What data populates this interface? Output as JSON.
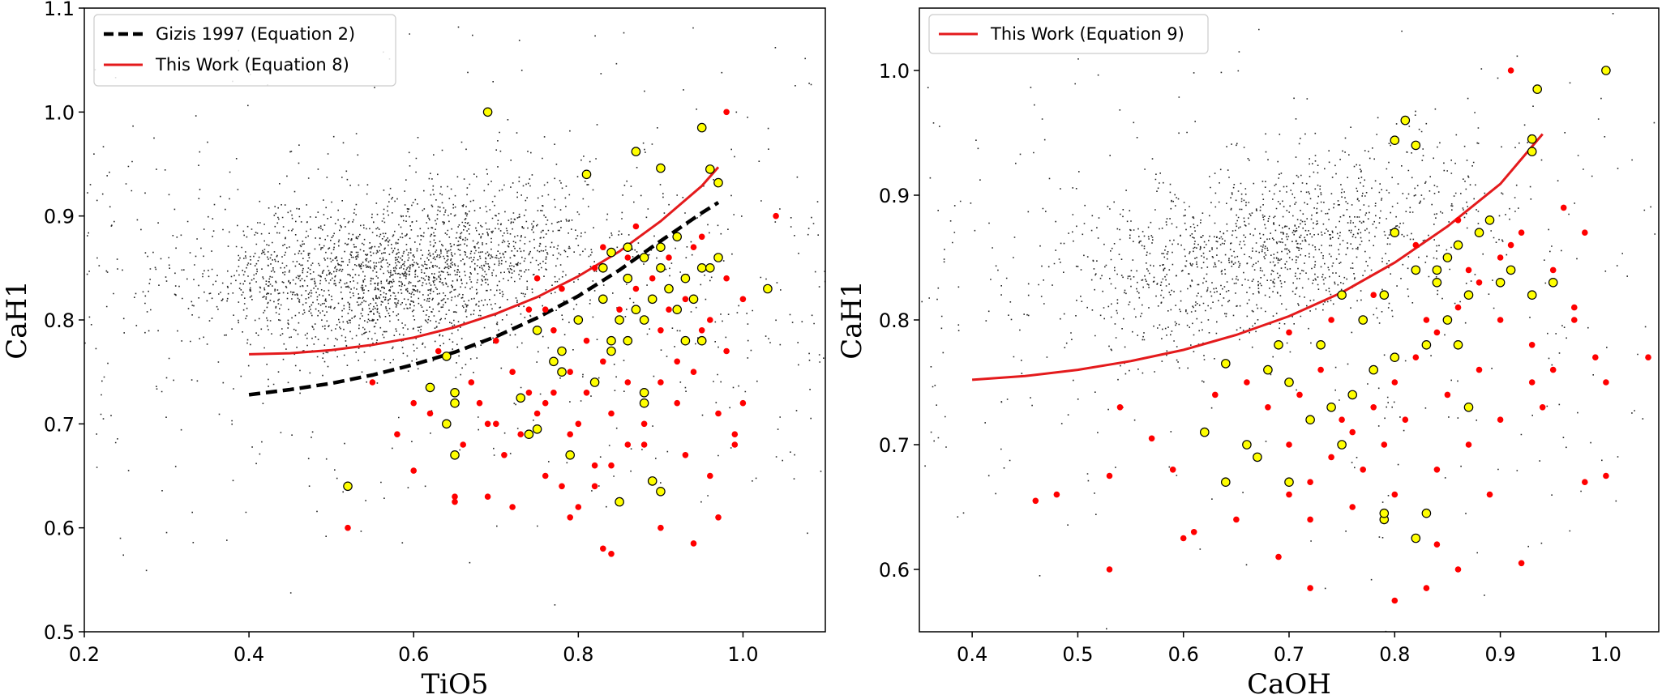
{
  "chart_data": [
    {
      "type": "scatter",
      "xlabel": "TiO5",
      "ylabel": "CaH1",
      "xlim": [
        0.2,
        1.1
      ],
      "ylim": [
        0.5,
        1.1
      ],
      "xticks": [
        "0.2",
        "0.4",
        "0.6",
        "0.8",
        "1.0"
      ],
      "yticks": [
        "0.5",
        "0.6",
        "0.7",
        "0.8",
        "0.9",
        "1.0",
        "1.1"
      ],
      "legend_position": "top-left",
      "legend": [
        {
          "label": "Gizis 1997 (Equation 2)",
          "color": "#000000",
          "style": "dashed"
        },
        {
          "label": "This Work (Equation 8)",
          "color": "#e41a1c",
          "style": "solid"
        }
      ],
      "background_cloud": {
        "color": "#000000",
        "center_trend": {
          "x": [
            0.35,
            0.55,
            0.7,
            0.85
          ],
          "y": [
            0.84,
            0.84,
            0.86,
            0.89
          ]
        }
      },
      "curves": [
        {
          "name": "Gizis 1997 (Equation 2)",
          "color": "#000000",
          "style": "dashed",
          "x": [
            0.4,
            0.45,
            0.5,
            0.55,
            0.6,
            0.65,
            0.7,
            0.75,
            0.8,
            0.85,
            0.9,
            0.95,
            0.97
          ],
          "y": [
            0.728,
            0.733,
            0.739,
            0.747,
            0.757,
            0.769,
            0.784,
            0.802,
            0.823,
            0.848,
            0.876,
            0.903,
            0.913
          ]
        },
        {
          "name": "This Work (Equation 8)",
          "color": "#e41a1c",
          "style": "solid",
          "x": [
            0.4,
            0.45,
            0.5,
            0.55,
            0.6,
            0.65,
            0.7,
            0.75,
            0.8,
            0.85,
            0.9,
            0.95,
            0.97
          ],
          "y": [
            0.767,
            0.768,
            0.771,
            0.776,
            0.783,
            0.793,
            0.806,
            0.822,
            0.842,
            0.866,
            0.895,
            0.929,
            0.947
          ]
        }
      ],
      "yellow_points": [
        [
          0.69,
          1.0
        ],
        [
          0.95,
          0.985
        ],
        [
          0.87,
          0.962
        ],
        [
          0.96,
          0.945
        ],
        [
          0.9,
          0.946
        ],
        [
          0.81,
          0.94
        ],
        [
          0.97,
          0.932
        ],
        [
          0.92,
          0.88
        ],
        [
          0.86,
          0.87
        ],
        [
          0.88,
          0.86
        ],
        [
          0.9,
          0.85
        ],
        [
          0.84,
          0.865
        ],
        [
          0.95,
          0.85
        ],
        [
          0.91,
          0.83
        ],
        [
          0.93,
          0.84
        ],
        [
          0.89,
          0.82
        ],
        [
          0.87,
          0.81
        ],
        [
          0.85,
          0.8
        ],
        [
          0.86,
          0.78
        ],
        [
          0.84,
          0.77
        ],
        [
          0.8,
          0.8
        ],
        [
          0.78,
          0.77
        ],
        [
          0.77,
          0.76
        ],
        [
          0.75,
          0.79
        ],
        [
          0.82,
          0.74
        ],
        [
          0.78,
          0.75
        ],
        [
          0.88,
          0.72
        ],
        [
          0.88,
          0.73
        ],
        [
          0.74,
          0.69
        ],
        [
          0.73,
          0.725
        ],
        [
          0.62,
          0.735
        ],
        [
          0.64,
          0.765
        ],
        [
          0.65,
          0.73
        ],
        [
          0.65,
          0.72
        ],
        [
          0.64,
          0.7
        ],
        [
          0.65,
          0.67
        ],
        [
          0.52,
          0.64
        ],
        [
          0.85,
          0.625
        ],
        [
          0.89,
          0.645
        ],
        [
          0.9,
          0.635
        ],
        [
          1.03,
          0.83
        ],
        [
          0.93,
          0.78
        ],
        [
          0.95,
          0.78
        ],
        [
          0.92,
          0.81
        ],
        [
          0.96,
          0.85
        ],
        [
          0.97,
          0.86
        ],
        [
          0.94,
          0.82
        ],
        [
          0.9,
          0.87
        ],
        [
          0.86,
          0.84
        ],
        [
          0.88,
          0.8
        ],
        [
          0.83,
          0.82
        ],
        [
          0.79,
          0.67
        ],
        [
          0.75,
          0.695
        ],
        [
          0.84,
          0.78
        ],
        [
          0.83,
          0.85
        ]
      ],
      "red_points": [
        [
          0.98,
          1.0
        ],
        [
          1.04,
          0.9
        ],
        [
          0.94,
          0.585
        ],
        [
          0.52,
          0.6
        ],
        [
          0.76,
          0.81
        ],
        [
          0.83,
          0.76
        ],
        [
          0.79,
          0.61
        ],
        [
          0.83,
          0.58
        ],
        [
          0.84,
          0.575
        ],
        [
          0.82,
          0.64
        ],
        [
          0.86,
          0.68
        ],
        [
          0.65,
          0.625
        ],
        [
          0.65,
          0.63
        ],
        [
          0.69,
          0.63
        ],
        [
          0.6,
          0.655
        ],
        [
          0.62,
          0.71
        ],
        [
          0.55,
          0.74
        ],
        [
          0.99,
          0.68
        ],
        [
          0.99,
          0.69
        ],
        [
          0.93,
          0.67
        ],
        [
          0.96,
          0.65
        ],
        [
          0.97,
          0.61
        ],
        [
          0.9,
          0.6
        ],
        [
          0.78,
          0.64
        ],
        [
          0.7,
          0.7
        ],
        [
          0.72,
          0.75
        ],
        [
          0.66,
          0.68
        ],
        [
          0.68,
          0.72
        ],
        [
          0.74,
          0.73
        ],
        [
          0.76,
          0.72
        ],
        [
          0.8,
          0.7
        ],
        [
          0.82,
          0.66
        ],
        [
          0.88,
          0.7
        ],
        [
          0.9,
          0.74
        ],
        [
          0.92,
          0.76
        ],
        [
          0.95,
          0.79
        ],
        [
          1.0,
          0.82
        ],
        [
          0.98,
          0.84
        ],
        [
          0.94,
          0.87
        ],
        [
          0.91,
          0.86
        ],
        [
          0.87,
          0.83
        ],
        [
          0.85,
          0.81
        ],
        [
          0.81,
          0.78
        ],
        [
          0.79,
          0.75
        ],
        [
          0.77,
          0.73
        ],
        [
          0.75,
          0.71
        ],
        [
          0.73,
          0.69
        ],
        [
          0.71,
          0.67
        ],
        [
          0.69,
          0.7
        ],
        [
          0.67,
          0.74
        ],
        [
          0.7,
          0.78
        ],
        [
          0.74,
          0.81
        ],
        [
          0.78,
          0.83
        ],
        [
          0.82,
          0.85
        ],
        [
          0.86,
          0.86
        ],
        [
          0.89,
          0.84
        ],
        [
          0.93,
          0.82
        ],
        [
          0.96,
          0.8
        ],
        [
          0.92,
          0.72
        ],
        [
          0.88,
          0.68
        ],
        [
          0.84,
          0.66
        ],
        [
          0.8,
          0.62
        ],
        [
          0.76,
          0.65
        ],
        [
          0.72,
          0.62
        ],
        [
          0.86,
          0.74
        ],
        [
          0.9,
          0.79
        ],
        [
          0.94,
          0.75
        ],
        [
          0.98,
          0.77
        ],
        [
          1.0,
          0.72
        ],
        [
          0.97,
          0.71
        ],
        [
          0.84,
          0.71
        ],
        [
          0.81,
          0.73
        ],
        [
          0.79,
          0.69
        ],
        [
          0.77,
          0.79
        ],
        [
          0.75,
          0.84
        ],
        [
          0.83,
          0.87
        ],
        [
          0.87,
          0.89
        ],
        [
          0.91,
          0.81
        ],
        [
          0.95,
          0.88
        ],
        [
          0.63,
          0.77
        ],
        [
          0.6,
          0.72
        ],
        [
          0.58,
          0.69
        ]
      ]
    },
    {
      "type": "scatter",
      "xlabel": "CaOH",
      "ylabel": "CaH1",
      "xlim": [
        0.35,
        1.05
      ],
      "ylim": [
        0.55,
        1.05
      ],
      "xticks": [
        "0.4",
        "0.5",
        "0.6",
        "0.7",
        "0.8",
        "0.9",
        "1.0"
      ],
      "yticks": [
        "0.6",
        "0.7",
        "0.8",
        "0.9",
        "1.0"
      ],
      "legend_position": "top-left",
      "legend": [
        {
          "label": "This Work (Equation 9)",
          "color": "#e41a1c",
          "style": "solid"
        }
      ],
      "background_cloud": {
        "color": "#000000",
        "center_trend": {
          "x": [
            0.55,
            0.65,
            0.75,
            0.85
          ],
          "y": [
            0.84,
            0.85,
            0.87,
            0.9
          ]
        }
      },
      "curves": [
        {
          "name": "This Work (Equation 9)",
          "color": "#e41a1c",
          "style": "solid",
          "x": [
            0.4,
            0.45,
            0.5,
            0.55,
            0.6,
            0.65,
            0.7,
            0.75,
            0.8,
            0.85,
            0.9,
            0.94
          ],
          "y": [
            0.752,
            0.755,
            0.76,
            0.767,
            0.776,
            0.788,
            0.803,
            0.822,
            0.846,
            0.875,
            0.909,
            0.949
          ]
        }
      ],
      "yellow_points": [
        [
          1.0,
          1.0
        ],
        [
          0.935,
          0.985
        ],
        [
          0.81,
          0.96
        ],
        [
          0.8,
          0.944
        ],
        [
          0.82,
          0.94
        ],
        [
          0.93,
          0.945
        ],
        [
          0.93,
          0.935
        ],
        [
          0.89,
          0.88
        ],
        [
          0.86,
          0.86
        ],
        [
          0.82,
          0.84
        ],
        [
          0.84,
          0.83
        ],
        [
          0.88,
          0.87
        ],
        [
          0.91,
          0.84
        ],
        [
          0.87,
          0.82
        ],
        [
          0.85,
          0.8
        ],
        [
          0.83,
          0.78
        ],
        [
          0.8,
          0.77
        ],
        [
          0.78,
          0.76
        ],
        [
          0.76,
          0.74
        ],
        [
          0.74,
          0.73
        ],
        [
          0.72,
          0.72
        ],
        [
          0.7,
          0.75
        ],
        [
          0.68,
          0.76
        ],
        [
          0.69,
          0.78
        ],
        [
          0.73,
          0.78
        ],
        [
          0.77,
          0.8
        ],
        [
          0.79,
          0.82
        ],
        [
          0.75,
          0.82
        ],
        [
          0.67,
          0.69
        ],
        [
          0.66,
          0.7
        ],
        [
          0.7,
          0.67
        ],
        [
          0.64,
          0.67
        ],
        [
          0.62,
          0.71
        ],
        [
          0.64,
          0.765
        ],
        [
          0.79,
          0.64
        ],
        [
          0.79,
          0.645
        ],
        [
          0.83,
          0.645
        ],
        [
          0.82,
          0.625
        ],
        [
          0.87,
          0.73
        ],
        [
          0.86,
          0.78
        ],
        [
          0.93,
          0.82
        ],
        [
          0.95,
          0.83
        ],
        [
          0.9,
          0.83
        ],
        [
          0.85,
          0.85
        ],
        [
          0.8,
          0.87
        ],
        [
          0.84,
          0.84
        ],
        [
          0.75,
          0.7
        ]
      ],
      "red_points": [
        [
          0.91,
          1.0
        ],
        [
          1.04,
          0.77
        ],
        [
          1.0,
          0.75
        ],
        [
          1.0,
          0.675
        ],
        [
          0.98,
          0.67
        ],
        [
          0.92,
          0.605
        ],
        [
          0.8,
          0.575
        ],
        [
          0.53,
          0.6
        ],
        [
          0.46,
          0.655
        ],
        [
          0.48,
          0.66
        ],
        [
          0.53,
          0.675
        ],
        [
          0.6,
          0.625
        ],
        [
          0.61,
          0.63
        ],
        [
          0.57,
          0.705
        ],
        [
          0.59,
          0.68
        ],
        [
          0.54,
          0.73
        ],
        [
          0.63,
          0.74
        ],
        [
          0.69,
          0.61
        ],
        [
          0.72,
          0.585
        ],
        [
          0.83,
          0.585
        ],
        [
          0.94,
          0.73
        ],
        [
          0.97,
          0.81
        ],
        [
          0.98,
          0.87
        ],
        [
          0.96,
          0.89
        ],
        [
          0.92,
          0.87
        ],
        [
          0.9,
          0.85
        ],
        [
          0.88,
          0.83
        ],
        [
          0.86,
          0.81
        ],
        [
          0.84,
          0.79
        ],
        [
          0.82,
          0.77
        ],
        [
          0.8,
          0.75
        ],
        [
          0.78,
          0.73
        ],
        [
          0.76,
          0.71
        ],
        [
          0.74,
          0.69
        ],
        [
          0.72,
          0.67
        ],
        [
          0.7,
          0.7
        ],
        [
          0.68,
          0.73
        ],
        [
          0.66,
          0.75
        ],
        [
          0.7,
          0.79
        ],
        [
          0.74,
          0.8
        ],
        [
          0.78,
          0.82
        ],
        [
          0.82,
          0.86
        ],
        [
          0.86,
          0.88
        ],
        [
          0.9,
          0.8
        ],
        [
          0.93,
          0.78
        ],
        [
          0.95,
          0.76
        ],
        [
          0.9,
          0.72
        ],
        [
          0.87,
          0.7
        ],
        [
          0.84,
          0.68
        ],
        [
          0.8,
          0.66
        ],
        [
          0.76,
          0.65
        ],
        [
          0.72,
          0.64
        ],
        [
          0.88,
          0.76
        ],
        [
          0.85,
          0.74
        ],
        [
          0.81,
          0.72
        ],
        [
          0.79,
          0.7
        ],
        [
          0.77,
          0.68
        ],
        [
          0.75,
          0.72
        ],
        [
          0.73,
          0.76
        ],
        [
          0.71,
          0.74
        ],
        [
          0.83,
          0.8
        ],
        [
          0.87,
          0.84
        ],
        [
          0.91,
          0.86
        ],
        [
          0.95,
          0.84
        ],
        [
          0.97,
          0.8
        ],
        [
          0.99,
          0.77
        ],
        [
          0.93,
          0.75
        ],
        [
          0.89,
          0.66
        ],
        [
          0.84,
          0.62
        ],
        [
          0.86,
          0.6
        ],
        [
          0.65,
          0.64
        ],
        [
          0.7,
          0.66
        ]
      ]
    }
  ]
}
